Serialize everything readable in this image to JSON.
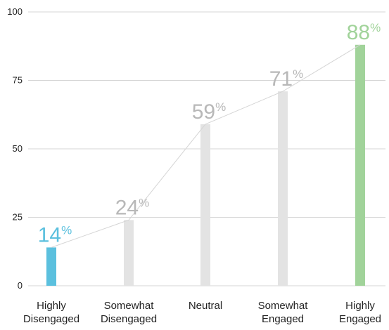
{
  "chart_data": {
    "type": "bar",
    "categories": [
      [
        "Highly",
        "Disengaged"
      ],
      [
        "Somewhat",
        "Disengaged"
      ],
      [
        "Neutral"
      ],
      [
        "Somewhat",
        "Engaged"
      ],
      [
        "Highly",
        "Engaged"
      ]
    ],
    "values": [
      14,
      24,
      59,
      71,
      88
    ],
    "value_suffix": "%",
    "bar_colors": [
      "#5bc0de",
      "#e3e3e3",
      "#e3e3e3",
      "#e3e3e3",
      "#a1d39a"
    ],
    "label_colors": [
      "#5bc0de",
      "#b8b8b8",
      "#b8b8b8",
      "#b8b8b8",
      "#a1d39a"
    ],
    "line_color": "#d5d5d5",
    "grid_color": "#d5d5d5",
    "y_ticks": [
      0,
      25,
      50,
      75,
      100
    ],
    "ylim": [
      0,
      100
    ],
    "grid": true,
    "connecting_line": true
  }
}
